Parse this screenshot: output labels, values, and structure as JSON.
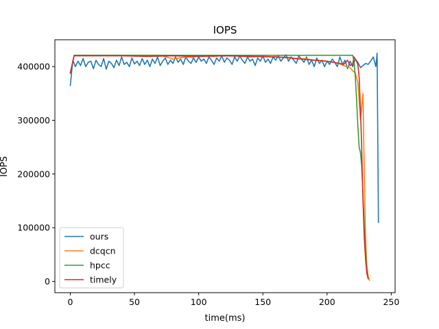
{
  "chart_data": {
    "type": "line",
    "title": "IOPS",
    "xlabel": "time(ms)",
    "ylabel": "IOPS",
    "xlim": [
      -12,
      253
    ],
    "ylim": [
      -21000,
      450000
    ],
    "xticks": [
      0,
      50,
      100,
      150,
      200,
      250
    ],
    "yticks": [
      0,
      100000,
      200000,
      300000,
      400000
    ],
    "grid": false,
    "legend_position": "lower-left",
    "series": [
      {
        "name": "ours",
        "color": "#1f77b4",
        "x": [
          0,
          2,
          4,
          6,
          8,
          10,
          12,
          14,
          16,
          18,
          20,
          22,
          24,
          26,
          28,
          30,
          32,
          34,
          36,
          38,
          40,
          42,
          44,
          46,
          48,
          50,
          52,
          54,
          56,
          58,
          60,
          62,
          64,
          66,
          68,
          70,
          72,
          74,
          76,
          78,
          80,
          82,
          84,
          86,
          88,
          90,
          92,
          94,
          96,
          98,
          100,
          102,
          104,
          106,
          108,
          110,
          112,
          114,
          116,
          118,
          120,
          122,
          124,
          126,
          128,
          130,
          132,
          134,
          136,
          138,
          140,
          142,
          144,
          146,
          148,
          150,
          152,
          154,
          156,
          158,
          160,
          162,
          164,
          166,
          168,
          170,
          172,
          174,
          176,
          178,
          180,
          182,
          184,
          186,
          188,
          190,
          192,
          194,
          196,
          198,
          200,
          202,
          204,
          206,
          208,
          210,
          212,
          214,
          216,
          218,
          220,
          222,
          224,
          226,
          228,
          230,
          232,
          234,
          236,
          238,
          239,
          240
        ],
        "y": [
          365000,
          412000,
          400000,
          410000,
          402000,
          415000,
          400000,
          408000,
          410000,
          396000,
          412000,
          404000,
          400000,
          415000,
          395000,
          410000,
          406000,
          398000,
          412000,
          402000,
          418000,
          404000,
          408000,
          400000,
          416000,
          405000,
          410000,
          402000,
          415000,
          404000,
          412000,
          400000,
          414000,
          406000,
          418000,
          402000,
          410000,
          416000,
          404000,
          412000,
          406000,
          418000,
          408000,
          414000,
          404000,
          418000,
          410000,
          406000,
          416000,
          408000,
          418000,
          410000,
          414000,
          406000,
          418000,
          412000,
          404000,
          416000,
          410000,
          420000,
          408000,
          416000,
          412000,
          404000,
          418000,
          410000,
          420000,
          412000,
          406000,
          418000,
          410000,
          414000,
          402000,
          416000,
          410000,
          420000,
          408000,
          414000,
          406000,
          418000,
          412000,
          420000,
          410000,
          416000,
          422000,
          410000,
          418000,
          412000,
          406000,
          420000,
          414000,
          408000,
          418000,
          404000,
          412000,
          400000,
          416000,
          406000,
          412000,
          400000,
          410000,
          404000,
          414000,
          408000,
          400000,
          418000,
          404000,
          412000,
          396000,
          410000,
          400000,
          414000,
          408000,
          398000,
          402000,
          406000,
          404000,
          410000,
          418000,
          400000,
          425000,
          110000
        ]
      },
      {
        "name": "dcqcn",
        "color": "#ff7f0e",
        "x": [
          0,
          3,
          6,
          10,
          20,
          30,
          40,
          50,
          60,
          70,
          75,
          80,
          85,
          90,
          95,
          100,
          110,
          120,
          130,
          140,
          150,
          160,
          170,
          180,
          185,
          190,
          195,
          200,
          205,
          210,
          215,
          218,
          220,
          222,
          224,
          226,
          228,
          229,
          230,
          231,
          232,
          233
        ],
        "y": [
          388000,
          421000,
          421000,
          421000,
          421000,
          421000,
          421000,
          421000,
          421000,
          421000,
          418000,
          414000,
          416000,
          418000,
          417000,
          420000,
          419000,
          420000,
          420000,
          418000,
          419000,
          418000,
          416000,
          415000,
          414000,
          412000,
          411000,
          410000,
          408000,
          405000,
          400000,
          398000,
          392000,
          388000,
          370000,
          300000,
          350000,
          200000,
          80000,
          30000,
          10000,
          2000
        ]
      },
      {
        "name": "hpcc",
        "color": "#2ca02c",
        "x": [
          0,
          3,
          6,
          10,
          50,
          100,
          150,
          200,
          210,
          215,
          218,
          220,
          221,
          222,
          223,
          224,
          225,
          226,
          227,
          228,
          229,
          230,
          231,
          232
        ],
        "y": [
          388000,
          421000,
          421000,
          421000,
          421000,
          421000,
          421000,
          421000,
          421000,
          421000,
          421000,
          421000,
          410000,
          380000,
          340000,
          290000,
          250000,
          240000,
          215000,
          160000,
          100000,
          50000,
          20000,
          5000
        ]
      },
      {
        "name": "timely",
        "color": "#d62728",
        "x": [
          0,
          3,
          6,
          10,
          20,
          40,
          60,
          80,
          100,
          120,
          140,
          160,
          170,
          175,
          180,
          185,
          190,
          195,
          200,
          205,
          210,
          213,
          216,
          218,
          220,
          221,
          222,
          223,
          224,
          225,
          226,
          227,
          228,
          229,
          230,
          231,
          232
        ],
        "y": [
          388000,
          420000,
          420000,
          420000,
          420000,
          420000,
          419000,
          420000,
          419000,
          420000,
          419000,
          418000,
          417000,
          415000,
          414000,
          413000,
          412000,
          411000,
          410000,
          408000,
          406000,
          404000,
          412000,
          402000,
          405000,
          418000,
          414000,
          410000,
          404000,
          380000,
          320000,
          250000,
          150000,
          80000,
          40000,
          15000,
          5000
        ]
      }
    ]
  }
}
